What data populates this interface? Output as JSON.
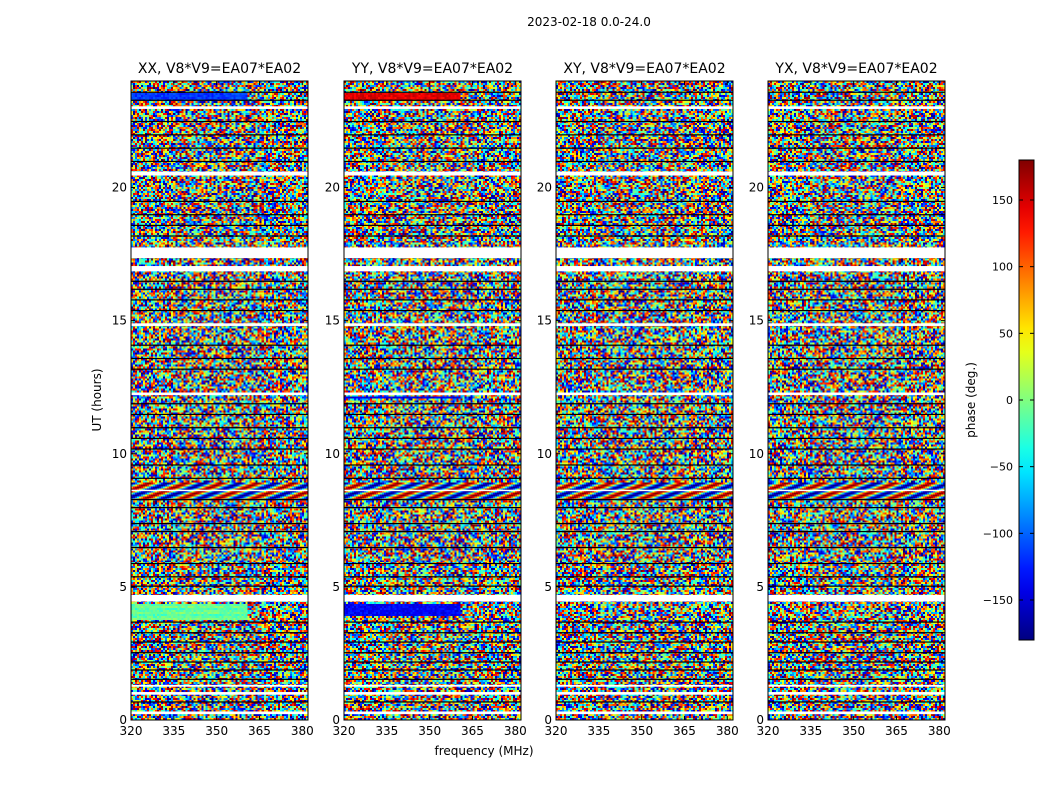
{
  "chart_data": {
    "type": "heatmap",
    "suptitle": "2023-02-18 0.0-24.0",
    "xlabel": "frequency (MHz)",
    "ylabel": "UT (hours)",
    "xlim": [
      320,
      382
    ],
    "ylim": [
      0,
      24
    ],
    "xticks": [
      320,
      335,
      350,
      365,
      380
    ],
    "yticks": [
      0,
      5,
      10,
      15,
      20
    ],
    "colorbar": {
      "label": "phase (deg.)",
      "range": [
        -180,
        180
      ],
      "ticks": [
        -150,
        -100,
        -50,
        0,
        50,
        100,
        150
      ],
      "tick_labels": [
        "−150",
        "−100",
        "−50",
        "0",
        "50",
        "100",
        "150"
      ],
      "colormap": "jet"
    },
    "panels": [
      {
        "title": "XX, V8*V9=EA07*EA02",
        "tint": 0
      },
      {
        "title": "YY, V8*V9=EA07*EA02",
        "tint": 1
      },
      {
        "title": "XY, V8*V9=EA07*EA02",
        "tint": 2
      },
      {
        "title": "YX, V8*V9=EA07*EA02",
        "tint": 3
      }
    ],
    "gap_bands_hours": [
      [
        0.22,
        0.32
      ],
      [
        0.95,
        1.05
      ],
      [
        1.25,
        1.32
      ],
      [
        4.45,
        4.7
      ],
      [
        8.6,
        8.65
      ],
      [
        12.2,
        12.3
      ],
      [
        14.8,
        14.9
      ],
      [
        16.85,
        17.05
      ],
      [
        17.35,
        17.75
      ],
      [
        20.45,
        20.6
      ],
      [
        22.95,
        23.05
      ]
    ],
    "flag_lines_hours": [
      0.7,
      1.55,
      1.9,
      2.2,
      2.55,
      2.95,
      3.3,
      3.7,
      5.05,
      5.4,
      5.9,
      6.5,
      7.1,
      7.4,
      8.0,
      8.3,
      9.1,
      9.6,
      10.2,
      10.6,
      11.0,
      11.5,
      11.9,
      13.2,
      13.6,
      14.1,
      15.4,
      15.8,
      16.2,
      16.5,
      18.2,
      18.6,
      19.0,
      19.5,
      21.0,
      21.5,
      22.0,
      22.5,
      23.3,
      23.6
    ]
  }
}
